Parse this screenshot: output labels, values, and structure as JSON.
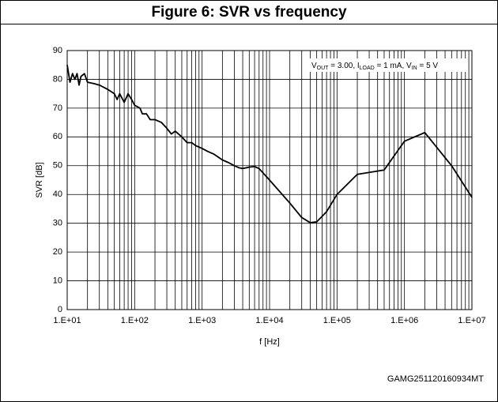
{
  "chart_data": {
    "type": "line",
    "title": "Figure 6: SVR vs frequency",
    "xlabel": "f [Hz]",
    "ylabel": "SVR [dB]",
    "annotation": [
      {
        "base": "V",
        "sub": "OUT",
        "text": " = 3.00, "
      },
      {
        "base": "I",
        "sub": "LOAD",
        "text": " = 1 mA, "
      },
      {
        "base": "V",
        "sub": "IN",
        "text": " = 5 V"
      }
    ],
    "footer": "GAMG251120160934MT",
    "xscale": "log",
    "xlim": [
      10,
      10000000
    ],
    "xticks": [
      {
        "value": 10,
        "label": "1.E+01"
      },
      {
        "value": 100,
        "label": "1.E+02"
      },
      {
        "value": 1000,
        "label": "1.E+03"
      },
      {
        "value": 10000,
        "label": "1.E+04"
      },
      {
        "value": 100000,
        "label": "1.E+05"
      },
      {
        "value": 1000000,
        "label": "1.E+06"
      },
      {
        "value": 10000000,
        "label": "1.E+07"
      }
    ],
    "ylim": [
      0,
      90
    ],
    "yticks": [
      0,
      10,
      20,
      30,
      40,
      50,
      60,
      70,
      80,
      90
    ],
    "grid": true,
    "minor_grid": true,
    "series": [
      {
        "color": "#000000",
        "x": [
          10,
          11,
          12,
          13,
          14,
          15,
          16,
          18,
          20,
          25,
          30,
          40,
          50,
          55,
          60,
          70,
          80,
          90,
          100,
          120,
          130,
          150,
          170,
          200,
          250,
          300,
          350,
          400,
          500,
          600,
          700,
          800,
          1000,
          1200,
          1500,
          2000,
          2500,
          3000,
          3500,
          4000,
          5000,
          6000,
          7000,
          10000,
          20000,
          30000,
          40000,
          50000,
          70000,
          100000,
          200000,
          500000,
          1000000,
          2000000,
          5000000,
          10000000
        ],
        "values": [
          85,
          79,
          82,
          80,
          82,
          78,
          81,
          82,
          79,
          78.5,
          78,
          76.5,
          75,
          73,
          75,
          72,
          75,
          73,
          71,
          70,
          68,
          68,
          66,
          66,
          65,
          63,
          61,
          62,
          60,
          58,
          58,
          57,
          56,
          55,
          54,
          52,
          51,
          50,
          49.3,
          49,
          49.5,
          49.7,
          49,
          45,
          37,
          32,
          30.2,
          30.5,
          34,
          40,
          47,
          48.5,
          58.5,
          61.5,
          50,
          39
        ]
      }
    ]
  }
}
